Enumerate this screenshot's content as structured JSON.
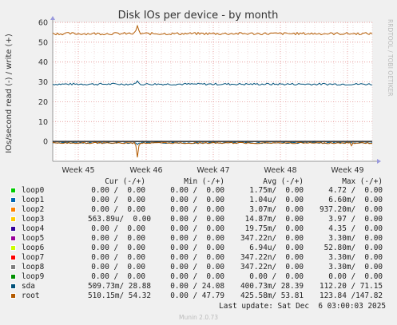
{
  "chart_data": {
    "type": "line",
    "title": "Disk IOs per device - by month",
    "ylabel": "IOs/second read (-) / write (+)",
    "ylim": [
      -10,
      60
    ],
    "yticks": [
      0,
      10,
      20,
      30,
      40,
      50,
      60
    ],
    "x_tick_labels": [
      "Week 45",
      "Week 46",
      "Week 47",
      "Week 48",
      "Week 49"
    ],
    "grid": true,
    "side_label": "RRDTOOL / TOBI OETIKER",
    "series": [
      {
        "name": "sda",
        "color": "#00517a",
        "write_level": 28.88,
        "read_level": 0.4
      },
      {
        "name": "root",
        "color": "#b35a00",
        "write_level": 54.32,
        "read_level": 0.5
      }
    ]
  },
  "legend": {
    "headers": {
      "cur": "Cur (-/+)",
      "min": "Min (-/+)",
      "avg": "Avg (-/+)",
      "max": "Max (-/+)"
    },
    "rows": [
      {
        "name": "loop0",
        "color": "#00cc00",
        "cur": "0.00 /  0.00",
        "min": "0.00 /  0.00",
        "avg": "1.75m/  0.00",
        "max": "4.72 /  0.00"
      },
      {
        "name": "loop1",
        "color": "#0066b3",
        "cur": "0.00 /  0.00",
        "min": "0.00 /  0.00",
        "avg": "1.04u/  0.00",
        "max": "6.60m/  0.00"
      },
      {
        "name": "loop2",
        "color": "#ff8000",
        "cur": "0.00 /  0.00",
        "min": "0.00 /  0.00",
        "avg": "3.07m/  0.00",
        "max": "937.20m/  0.00"
      },
      {
        "name": "loop3",
        "color": "#ffcc00",
        "cur": "563.89u/  0.00",
        "min": "0.00 /  0.00",
        "avg": "14.87m/  0.00",
        "max": "3.97 /  0.00"
      },
      {
        "name": "loop4",
        "color": "#330099",
        "cur": "0.00 /  0.00",
        "min": "0.00 /  0.00",
        "avg": "19.75m/  0.00",
        "max": "4.35 /  0.00"
      },
      {
        "name": "loop5",
        "color": "#990099",
        "cur": "0.00 /  0.00",
        "min": "0.00 /  0.00",
        "avg": "347.22n/  0.00",
        "max": "3.30m/  0.00"
      },
      {
        "name": "loop6",
        "color": "#ccff00",
        "cur": "0.00 /  0.00",
        "min": "0.00 /  0.00",
        "avg": "6.94u/  0.00",
        "max": "52.80m/  0.00"
      },
      {
        "name": "loop7",
        "color": "#ff0000",
        "cur": "0.00 /  0.00",
        "min": "0.00 /  0.00",
        "avg": "347.22n/  0.00",
        "max": "3.30m/  0.00"
      },
      {
        "name": "loop8",
        "color": "#808080",
        "cur": "0.00 /  0.00",
        "min": "0.00 /  0.00",
        "avg": "347.22n/  0.00",
        "max": "3.30m/  0.00"
      },
      {
        "name": "loop9",
        "color": "#008f00",
        "cur": "0.00 /  0.00",
        "min": "0.00 /  0.00",
        "avg": "0.00 /  0.00",
        "max": "0.00 /  0.00"
      },
      {
        "name": "sda",
        "color": "#00517a",
        "cur": "509.73m/ 28.88",
        "min": "0.00 / 24.08",
        "avg": "400.73m/ 28.39",
        "max": "112.20 / 71.15"
      },
      {
        "name": "root",
        "color": "#b35a00",
        "cur": "510.15m/ 54.32",
        "min": "0.00 / 47.79",
        "avg": "425.58m/ 53.81",
        "max": "123.84 /147.82"
      }
    ]
  },
  "footer": {
    "last_update": "Last update: Sat Dec  6 03:00:03 2025",
    "munin": "Munin 2.0.73"
  }
}
